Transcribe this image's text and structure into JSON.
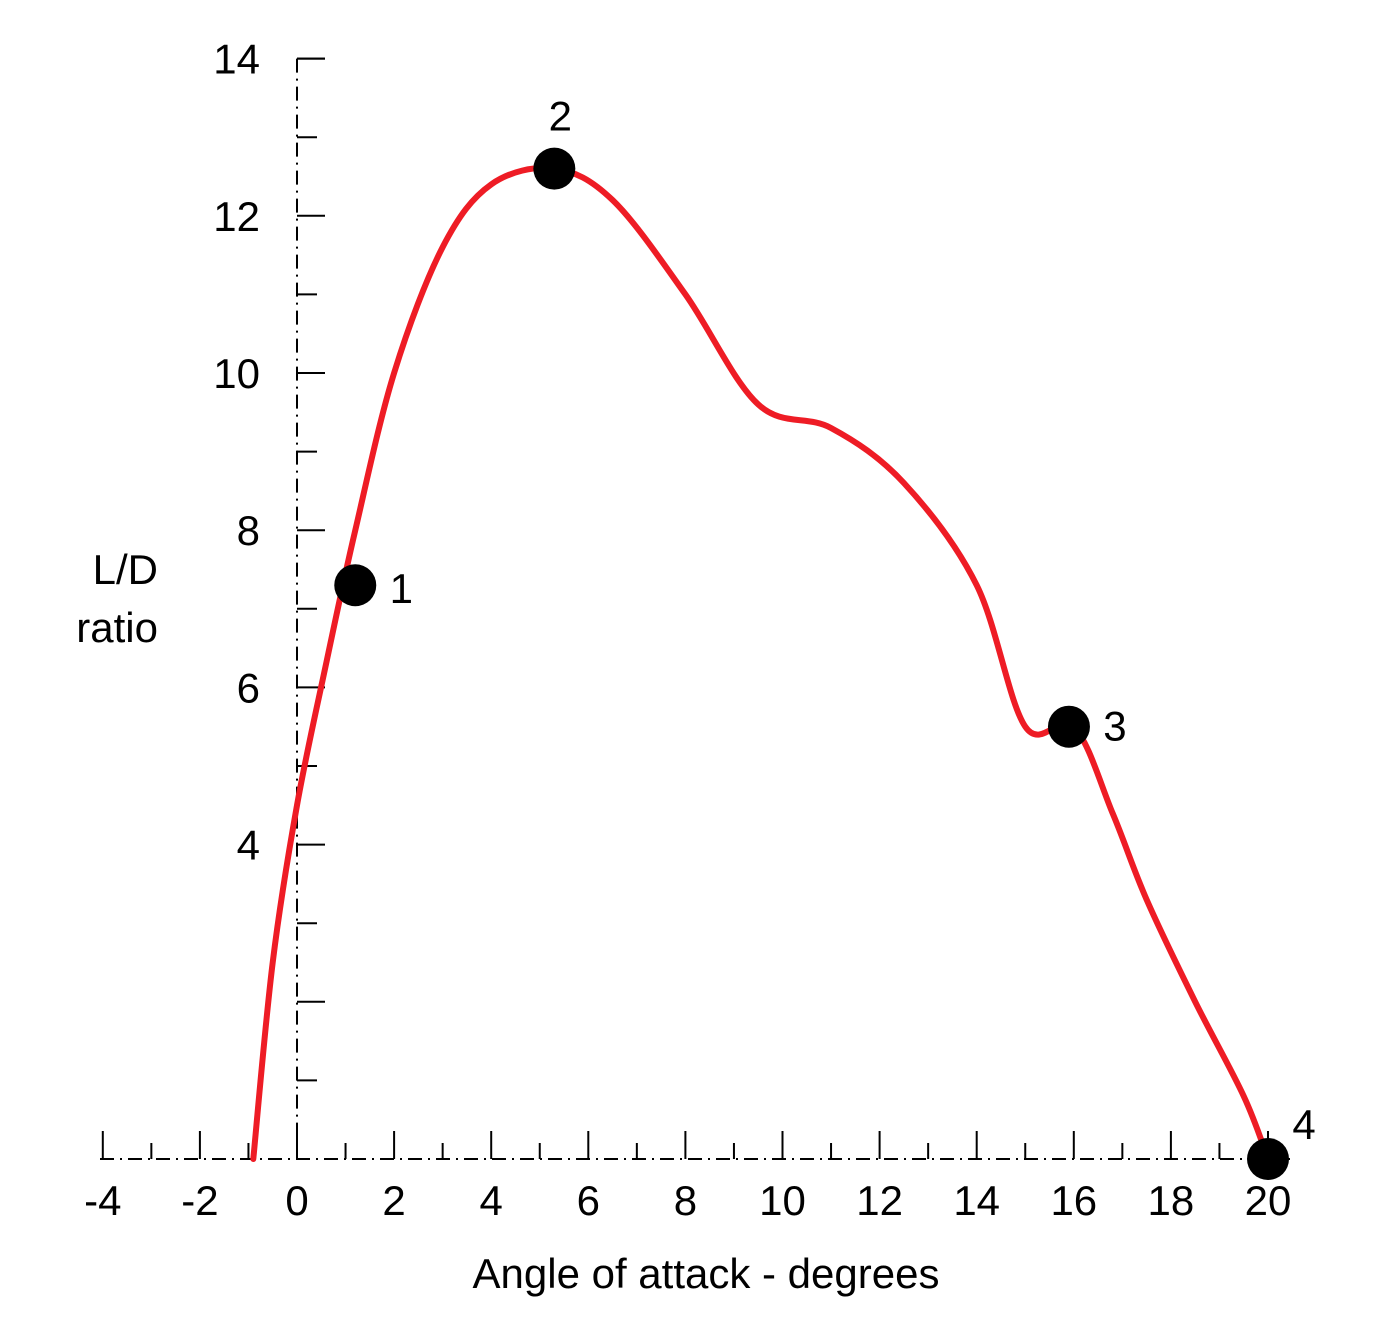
{
  "chart_data": {
    "type": "line",
    "title": "",
    "xlabel": "Angle of attack - degrees",
    "ylabel_lines": [
      "L/D",
      "ratio"
    ],
    "xlim": [
      -4,
      20
    ],
    "ylim": [
      0,
      14
    ],
    "x_ticks": [
      "-4",
      "-2",
      "0",
      "2",
      "4",
      "6",
      "8",
      "10",
      "12",
      "14",
      "16",
      "18",
      "20"
    ],
    "y_ticks": [
      "4",
      "6",
      "8",
      "10",
      "12",
      "14"
    ],
    "grid": false,
    "legend": "none",
    "series": [
      {
        "color": "#ee1c25",
        "x": [
          -0.9,
          -0.5,
          0.0,
          0.6,
          1.2,
          2.0,
          3.0,
          4.0,
          5.3,
          6.5,
          8.0,
          9.5,
          11.0,
          12.5,
          14.0,
          15.0,
          16.0,
          16.8,
          17.5,
          18.5,
          19.5,
          20.0
        ],
        "y": [
          0.0,
          2.5,
          4.5,
          6.3,
          8.0,
          10.0,
          11.6,
          12.4,
          12.6,
          12.2,
          11.0,
          9.6,
          9.3,
          8.6,
          7.3,
          5.5,
          5.5,
          4.4,
          3.3,
          2.0,
          0.8,
          0.0
        ]
      }
    ],
    "marked_points": [
      {
        "label": "1",
        "x": 1.2,
        "y": 7.3
      },
      {
        "label": "2",
        "x": 5.3,
        "y": 12.6
      },
      {
        "label": "3",
        "x": 15.9,
        "y": 5.5
      },
      {
        "label": "4",
        "x": 20.0,
        "y": 0.0
      }
    ]
  }
}
